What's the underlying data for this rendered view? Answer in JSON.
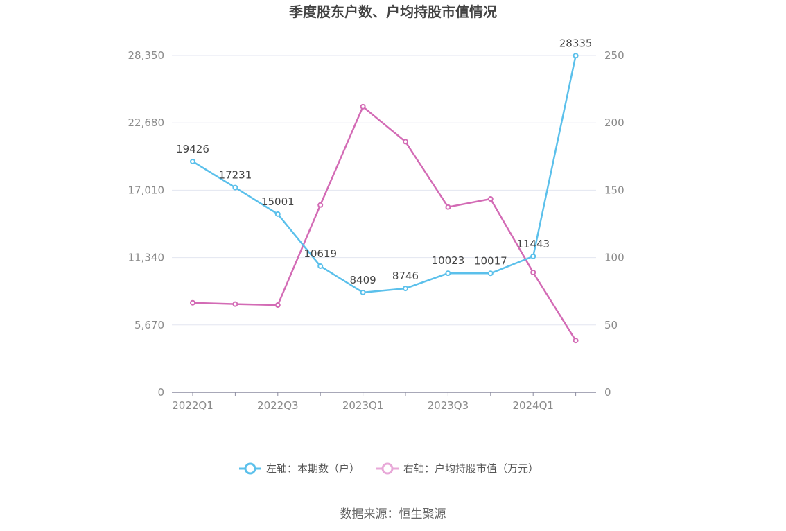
{
  "chart_data": {
    "type": "line",
    "title": "季度股东户数、户均持股市值情况",
    "quarters": [
      "2022Q1",
      "2022Q2",
      "2022Q3",
      "2022Q4",
      "2023Q1",
      "2023Q2",
      "2023Q3",
      "2023Q4",
      "2024Q1",
      "2024Q2"
    ],
    "x_tick_labels": [
      "2022Q1",
      "2022Q3",
      "2023Q1",
      "2023Q3",
      "2024Q1"
    ],
    "left_axis": {
      "ticks": [
        "0",
        "5,670",
        "11,340",
        "17,010",
        "22,680",
        "28,350"
      ],
      "ylim": [
        0,
        28350
      ]
    },
    "right_axis": {
      "ticks": [
        "0",
        "50",
        "100",
        "150",
        "200",
        "250"
      ],
      "ylim": [
        0,
        250
      ]
    },
    "series": [
      {
        "name": "左轴：本期数（户）",
        "axis": "left",
        "color": "#5bc0eb",
        "values": [
          19426,
          17231,
          15001,
          10619,
          8409,
          8746,
          10023,
          10017,
          11443,
          28335
        ],
        "labels": [
          "19426",
          "17231",
          "15001",
          "10619",
          "8409",
          "8746",
          "10023",
          "10017",
          "11443",
          "28335"
        ]
      },
      {
        "name": "右轴：户均持股市值（万元）",
        "axis": "right",
        "color": "#d36bb5",
        "values": [
          66.5,
          65.5,
          64.8,
          139,
          212,
          186,
          137.5,
          143.5,
          89,
          38.5
        ]
      }
    ],
    "grid": true,
    "legend_position": "bottom"
  },
  "source": "数据来源：恒生聚源"
}
